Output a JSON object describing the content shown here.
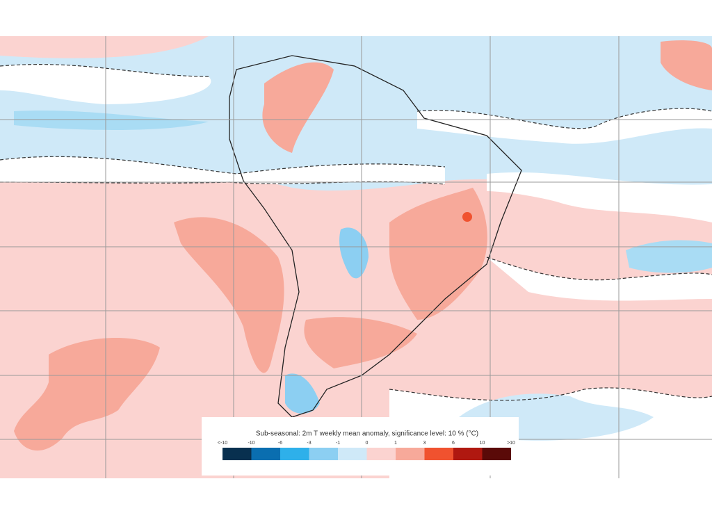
{
  "legend": {
    "title": "Sub-seasonal: 2m T weekly mean anomaly, significance level: 10 % (°C)",
    "ticks": [
      "<-10",
      "-10",
      "-6",
      "-3",
      "-1",
      "0",
      "1",
      "3",
      "6",
      "10",
      ">10"
    ],
    "colors": [
      "#08304f",
      "#0a6eb0",
      "#2eb0ea",
      "#8ccff2",
      "#cfe9f8",
      "#fbd3d0",
      "#f7a99a",
      "#f0522f",
      "#b01810",
      "#5a0a08"
    ]
  }
}
